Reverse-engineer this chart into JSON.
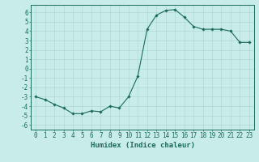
{
  "x": [
    0,
    1,
    2,
    3,
    4,
    5,
    6,
    7,
    8,
    9,
    10,
    11,
    12,
    13,
    14,
    15,
    16,
    17,
    18,
    19,
    20,
    21,
    22,
    23
  ],
  "y": [
    -3.0,
    -3.3,
    -3.8,
    -4.2,
    -4.8,
    -4.8,
    -4.5,
    -4.6,
    -4.0,
    -4.2,
    -3.0,
    -0.8,
    4.2,
    5.7,
    6.2,
    6.3,
    5.5,
    4.5,
    4.2,
    4.2,
    4.2,
    4.0,
    2.8,
    2.8
  ],
  "line_color": "#1a6b5a",
  "marker": "D",
  "marker_size": 1.8,
  "bg_color": "#c8ece8",
  "grid_color": "#b0d8d2",
  "axis_color": "#1a6b5a",
  "xlabel": "Humidex (Indice chaleur)",
  "ylim": [
    -6.5,
    6.8
  ],
  "xlim": [
    -0.5,
    23.5
  ],
  "yticks": [
    -6,
    -5,
    -4,
    -3,
    -2,
    -1,
    0,
    1,
    2,
    3,
    4,
    5,
    6
  ],
  "xticks": [
    0,
    1,
    2,
    3,
    4,
    5,
    6,
    7,
    8,
    9,
    10,
    11,
    12,
    13,
    14,
    15,
    16,
    17,
    18,
    19,
    20,
    21,
    22,
    23
  ],
  "font_size": 5.5,
  "xlabel_font_size": 6.5,
  "lw": 0.8
}
